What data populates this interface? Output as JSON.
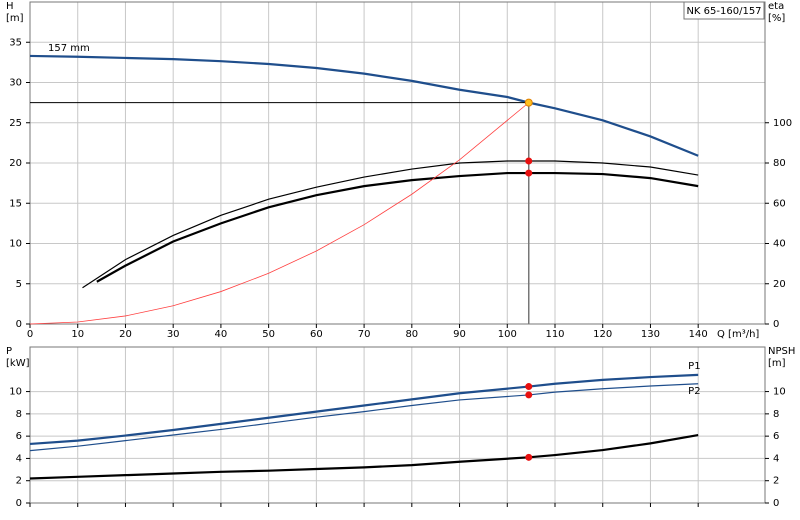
{
  "chart_data": [
    {
      "type": "line",
      "title": "NK 65-160/157",
      "xlabel": "Q [m³/h]",
      "ylabel": [
        "H",
        "[m]"
      ],
      "y2label": [
        "eta",
        "[%]"
      ],
      "xlim": [
        0,
        154
      ],
      "xticks": [
        0,
        10,
        20,
        30,
        40,
        50,
        60,
        70,
        80,
        90,
        100,
        110,
        120,
        130,
        140
      ],
      "ylim": [
        0,
        40
      ],
      "yticks": [
        0,
        5,
        10,
        15,
        20,
        25,
        30,
        35
      ],
      "y2lim": [
        0,
        160
      ],
      "y2ticks": [
        0,
        20,
        40,
        60,
        80,
        100
      ],
      "grid": true,
      "series": [
        {
          "name": "157 mm",
          "color": "#1f4e8c",
          "line_width": 2.2,
          "x": [
            0,
            10,
            20,
            30,
            40,
            50,
            60,
            70,
            80,
            90,
            100,
            104.5,
            110,
            120,
            130,
            140
          ],
          "values": [
            33.3,
            33.2,
            33.05,
            32.9,
            32.65,
            32.3,
            31.8,
            31.1,
            30.2,
            29.1,
            28.2,
            27.5,
            26.8,
            25.3,
            23.3,
            20.9
          ]
        },
        {
          "axis": "y2",
          "color": "#000000",
          "line_width": 1.2,
          "x": [
            11,
            20,
            30,
            40,
            50,
            60,
            70,
            80,
            90,
            100,
            104.5,
            110,
            120,
            130,
            140
          ],
          "values": [
            18,
            32,
            44,
            54,
            62,
            68,
            73,
            77,
            80,
            81,
            81,
            81,
            80,
            78,
            74
          ]
        },
        {
          "axis": "y2",
          "color": "#000000",
          "line_width": 2.2,
          "x": [
            14,
            20,
            30,
            40,
            50,
            60,
            70,
            80,
            90,
            100,
            104.5,
            110,
            120,
            130,
            140
          ],
          "values": [
            21,
            29,
            41,
            50,
            58,
            64,
            68.5,
            71.5,
            73.5,
            75,
            75,
            75,
            74.5,
            72.5,
            68.5
          ]
        },
        {
          "color": "#ff4040",
          "line_width": 0.8,
          "x": [
            0,
            10,
            20,
            30,
            40,
            50,
            60,
            70,
            80,
            90,
            104.5
          ],
          "values": [
            0,
            0.25,
            1,
            2.27,
            4.03,
            6.3,
            9.07,
            12.34,
            16.12,
            20.4,
            27.5
          ]
        }
      ],
      "markers": [
        {
          "x": 104.5,
          "y": 27.5,
          "color": "#ffc020",
          "guides": true
        },
        {
          "x": 104.5,
          "y": 81,
          "axis": "y2",
          "color": "#e81010"
        },
        {
          "x": 104.5,
          "y": 75,
          "axis": "y2",
          "color": "#e81010"
        }
      ]
    },
    {
      "type": "line",
      "ylabel": [
        "P",
        "[kW]"
      ],
      "y2label": [
        "NPSH",
        "[m]"
      ],
      "xlim": [
        0,
        154
      ],
      "ylim": [
        0,
        14
      ],
      "yticks": [
        0,
        2,
        4,
        6,
        8,
        10
      ],
      "y2lim": [
        0,
        14
      ],
      "y2ticks": [
        0,
        2,
        4,
        6,
        8,
        10
      ],
      "grid": true,
      "series": [
        {
          "name": "P1",
          "color": "#1f4e8c",
          "line_width": 2.2,
          "x": [
            0,
            10,
            20,
            30,
            40,
            50,
            60,
            70,
            80,
            90,
            104.5,
            110,
            120,
            130,
            140
          ],
          "values": [
            5.3,
            5.6,
            6.05,
            6.55,
            7.1,
            7.65,
            8.2,
            8.75,
            9.3,
            9.85,
            10.45,
            10.7,
            11.05,
            11.3,
            11.5
          ]
        },
        {
          "name": "P2",
          "color": "#1f4e8c",
          "line_width": 1.2,
          "x": [
            0,
            10,
            20,
            30,
            40,
            50,
            60,
            70,
            80,
            90,
            104.5,
            110,
            120,
            130,
            140
          ],
          "values": [
            4.7,
            5.1,
            5.6,
            6.1,
            6.6,
            7.15,
            7.7,
            8.2,
            8.75,
            9.25,
            9.7,
            9.95,
            10.25,
            10.5,
            10.7
          ]
        },
        {
          "axis": "y2",
          "color": "#000000",
          "line_width": 2.2,
          "x": [
            0,
            10,
            20,
            30,
            40,
            50,
            60,
            70,
            80,
            90,
            104.5,
            110,
            120,
            130,
            140
          ],
          "values": [
            2.2,
            2.35,
            2.5,
            2.65,
            2.8,
            2.9,
            3.05,
            3.2,
            3.4,
            3.7,
            4.1,
            4.3,
            4.75,
            5.35,
            6.1
          ]
        }
      ],
      "markers": [
        {
          "x": 104.5,
          "y": 10.45,
          "color": "#e81010"
        },
        {
          "x": 104.5,
          "y": 9.7,
          "color": "#e81010"
        },
        {
          "x": 104.5,
          "y": 4.1,
          "axis": "y2",
          "color": "#e81010"
        }
      ]
    }
  ]
}
